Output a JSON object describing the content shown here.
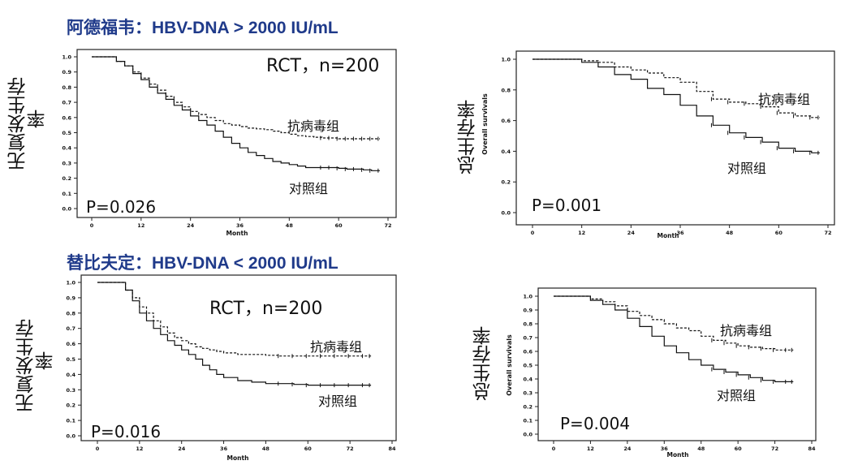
{
  "headings": {
    "top": "阿德福韦：HBV-DNA  > 2000 IU/mL",
    "bottom": "替比夫定：HBV-DNA  < 2000 IU/mL"
  },
  "colors": {
    "heading": "#1f3a8a",
    "curve": "#111111"
  },
  "chart_data": [
    {
      "type": "line",
      "id": "adv-dfs",
      "ylabel_lines": [
        "无复发生存",
        "率"
      ],
      "xlabel": "Month",
      "xticks": [
        0,
        12,
        24,
        36,
        48,
        60,
        72
      ],
      "yticks": [
        0.0,
        0.1,
        0.2,
        0.3,
        0.4,
        0.5,
        0.6,
        0.7,
        0.8,
        0.9,
        1.0
      ],
      "ytick_labels": [
        "0.0",
        "0.1",
        "0.2",
        "0.3",
        "0.4",
        "0.5",
        "0.6",
        "0.7",
        "0.8",
        "0.9",
        "1.0"
      ],
      "xlim": [
        0,
        72
      ],
      "ylim": [
        0,
        1
      ],
      "annotation": "RCT，n=200",
      "pvalue": "P=0.026",
      "series": [
        {
          "name": "抗病毒组",
          "style": "dashed",
          "x": [
            0,
            4,
            6,
            8,
            10,
            12,
            14,
            16,
            18,
            20,
            22,
            24,
            26,
            28,
            30,
            32,
            34,
            36,
            38,
            40,
            42,
            44,
            46,
            48,
            50,
            52,
            54,
            56,
            58,
            60,
            62,
            64,
            66,
            68,
            70
          ],
          "y": [
            1.0,
            1.0,
            0.97,
            0.94,
            0.9,
            0.86,
            0.82,
            0.78,
            0.74,
            0.7,
            0.67,
            0.64,
            0.62,
            0.6,
            0.58,
            0.56,
            0.55,
            0.54,
            0.53,
            0.525,
            0.52,
            0.51,
            0.5,
            0.49,
            0.48,
            0.475,
            0.47,
            0.465,
            0.465,
            0.46,
            0.46,
            0.46,
            0.46,
            0.46,
            0.46
          ]
        },
        {
          "name": "对照组",
          "style": "solid",
          "x": [
            0,
            4,
            6,
            8,
            10,
            12,
            14,
            16,
            18,
            20,
            22,
            24,
            26,
            28,
            30,
            32,
            34,
            36,
            38,
            40,
            42,
            44,
            46,
            48,
            50,
            52,
            54,
            56,
            58,
            60,
            62,
            64,
            66,
            68,
            70
          ],
          "y": [
            1.0,
            1.0,
            0.97,
            0.94,
            0.89,
            0.85,
            0.8,
            0.76,
            0.72,
            0.68,
            0.65,
            0.61,
            0.58,
            0.55,
            0.51,
            0.47,
            0.43,
            0.4,
            0.37,
            0.35,
            0.33,
            0.31,
            0.3,
            0.29,
            0.28,
            0.27,
            0.27,
            0.27,
            0.27,
            0.265,
            0.26,
            0.26,
            0.255,
            0.25,
            0.25
          ]
        }
      ]
    },
    {
      "type": "line",
      "id": "adv-os",
      "ylabel_lines": [
        "总生存率"
      ],
      "ylabel_small": "Overall survivals",
      "xlabel": "Month",
      "xticks": [
        0,
        12,
        24,
        36,
        48,
        60,
        72
      ],
      "yticks": [
        0.0,
        0.2,
        0.4,
        0.6,
        0.8,
        1.0
      ],
      "ytick_labels": [
        "0.0",
        "0.2",
        "0.4",
        "0.6",
        "0.8",
        "1.0"
      ],
      "xlim": [
        0,
        72
      ],
      "ylim": [
        0,
        1
      ],
      "pvalue": "P=0.001",
      "series": [
        {
          "name": "抗病毒组",
          "style": "dashed",
          "x": [
            0,
            8,
            12,
            16,
            20,
            24,
            28,
            32,
            36,
            40,
            44,
            48,
            52,
            56,
            60,
            64,
            68,
            70
          ],
          "y": [
            1.0,
            1.0,
            0.99,
            0.98,
            0.95,
            0.93,
            0.91,
            0.88,
            0.85,
            0.79,
            0.74,
            0.72,
            0.71,
            0.69,
            0.65,
            0.63,
            0.62,
            0.62
          ]
        },
        {
          "name": "对照组",
          "style": "solid",
          "x": [
            0,
            8,
            12,
            16,
            20,
            24,
            28,
            32,
            36,
            40,
            44,
            48,
            52,
            56,
            60,
            64,
            68,
            70
          ],
          "y": [
            1.0,
            1.0,
            0.98,
            0.95,
            0.9,
            0.87,
            0.81,
            0.77,
            0.7,
            0.63,
            0.57,
            0.52,
            0.49,
            0.46,
            0.42,
            0.4,
            0.39,
            0.39
          ]
        }
      ]
    },
    {
      "type": "line",
      "id": "ldt-dfs",
      "ylabel_lines": [
        "无复发生存",
        "率"
      ],
      "xlabel": "Month",
      "xticks": [
        0,
        12,
        24,
        36,
        48,
        60,
        72,
        84
      ],
      "yticks": [
        0.0,
        0.1,
        0.2,
        0.3,
        0.4,
        0.5,
        0.6,
        0.7,
        0.8,
        0.9,
        1.0
      ],
      "ytick_labels": [
        "0.0",
        "0.1",
        "0.2",
        "0.3",
        "0.4",
        "0.5",
        "0.6",
        "0.7",
        "0.8",
        "0.9",
        "1.0"
      ],
      "xlim": [
        0,
        84
      ],
      "ylim": [
        0,
        1
      ],
      "annotation": "RCT，n=200",
      "pvalue": "P=0.016",
      "series": [
        {
          "name": "抗病毒组",
          "style": "dashed",
          "x": [
            0,
            4,
            8,
            10,
            12,
            14,
            16,
            18,
            20,
            22,
            24,
            26,
            28,
            30,
            32,
            34,
            36,
            40,
            44,
            48,
            52,
            56,
            60,
            64,
            68,
            72,
            76,
            78
          ],
          "y": [
            1.0,
            1.0,
            0.95,
            0.9,
            0.84,
            0.8,
            0.75,
            0.71,
            0.67,
            0.64,
            0.62,
            0.6,
            0.58,
            0.57,
            0.56,
            0.55,
            0.54,
            0.53,
            0.53,
            0.525,
            0.52,
            0.52,
            0.52,
            0.52,
            0.52,
            0.52,
            0.52,
            0.52
          ]
        },
        {
          "name": "对照组",
          "style": "solid",
          "x": [
            0,
            4,
            8,
            10,
            12,
            14,
            16,
            18,
            20,
            22,
            24,
            26,
            28,
            30,
            32,
            34,
            36,
            40,
            44,
            48,
            52,
            56,
            60,
            64,
            68,
            72,
            76,
            78
          ],
          "y": [
            1.0,
            1.0,
            0.95,
            0.88,
            0.8,
            0.75,
            0.7,
            0.66,
            0.62,
            0.59,
            0.56,
            0.53,
            0.5,
            0.46,
            0.43,
            0.4,
            0.38,
            0.36,
            0.35,
            0.34,
            0.34,
            0.335,
            0.33,
            0.33,
            0.33,
            0.33,
            0.33,
            0.33
          ]
        }
      ]
    },
    {
      "type": "line",
      "id": "ldt-os",
      "ylabel_lines": [
        "总生存率"
      ],
      "ylabel_small": "Overall survivals",
      "xlabel": "Month",
      "xticks": [
        0,
        12,
        24,
        36,
        48,
        60,
        72,
        84
      ],
      "yticks": [
        0.0,
        0.1,
        0.2,
        0.3,
        0.4,
        0.5,
        0.6,
        0.7,
        0.8,
        0.9,
        1.0
      ],
      "ytick_labels": [
        "0.0",
        "0.1",
        "0.2",
        "0.3",
        "0.4",
        "0.5",
        "0.6",
        "0.7",
        "0.8",
        "0.9",
        "1.0"
      ],
      "xlim": [
        0,
        84
      ],
      "ylim": [
        0,
        1
      ],
      "pvalue": "P=0.004",
      "series": [
        {
          "name": "抗病毒组",
          "style": "dashed",
          "x": [
            0,
            8,
            12,
            16,
            20,
            24,
            28,
            32,
            36,
            40,
            44,
            48,
            52,
            56,
            60,
            64,
            68,
            72,
            76,
            78
          ],
          "y": [
            1.0,
            1.0,
            0.98,
            0.96,
            0.93,
            0.89,
            0.86,
            0.83,
            0.8,
            0.77,
            0.75,
            0.71,
            0.68,
            0.66,
            0.64,
            0.63,
            0.62,
            0.61,
            0.61,
            0.61
          ]
        },
        {
          "name": "对照组",
          "style": "solid",
          "x": [
            0,
            8,
            12,
            16,
            20,
            24,
            28,
            32,
            36,
            40,
            44,
            48,
            52,
            56,
            60,
            64,
            68,
            72,
            76,
            78
          ],
          "y": [
            1.0,
            1.0,
            0.97,
            0.94,
            0.9,
            0.84,
            0.78,
            0.71,
            0.64,
            0.59,
            0.54,
            0.5,
            0.47,
            0.45,
            0.43,
            0.41,
            0.39,
            0.38,
            0.38,
            0.38
          ]
        }
      ]
    }
  ]
}
